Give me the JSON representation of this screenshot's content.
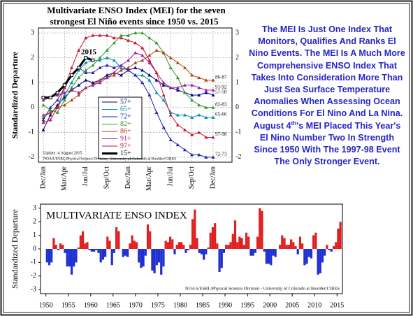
{
  "chart_data": [
    {
      "type": "line",
      "title": "Multivariate ENSO Index (MEI) for the seven",
      "subtitle": "strongest El Niño events since 1950 vs. 2015",
      "y_label": "Standardized Departure",
      "categories": [
        "Dec/Jan",
        null,
        null,
        "Mar/Apr",
        null,
        null,
        "Jun/Jul",
        null,
        null,
        "Sep/Oct",
        null,
        null,
        "Dec/Jan",
        null,
        null,
        "Mar/Apr",
        null,
        null,
        "Jun/Jul",
        null,
        null,
        "Sep/Oct",
        null,
        null,
        "Dec/Jan"
      ],
      "ylim": [
        -2.2,
        3.2
      ],
      "yticks": [
        -2,
        -1,
        0,
        1,
        2,
        3
      ],
      "annotations": [
        "2015",
        "Update: 4 August 2015",
        "NOAA/ESRL/Physical Science Division - University of Colorado at Boulder/CIRES"
      ],
      "series": [
        {
          "name": "57+",
          "end_label": "57-58",
          "color": "#000080",
          "values": [
            -0.9,
            -0.3,
            0.1,
            0.4,
            0.7,
            0.9,
            1.1,
            1.0,
            1.1,
            1.3,
            1.4,
            1.3,
            1.5,
            1.6,
            1.5,
            1.3,
            1.1,
            0.9,
            0.8,
            0.7,
            0.6,
            0.5,
            0.5,
            0.6,
            0.5
          ]
        },
        {
          "name": "65+",
          "end_label": "65-66",
          "color": "#0090b0",
          "values": [
            -0.4,
            -0.2,
            0.0,
            0.5,
            1.0,
            1.5,
            1.8,
            1.9,
            1.9,
            2.0,
            1.9,
            1.6,
            1.5,
            1.3,
            1.3,
            1.1,
            0.6,
            0.3,
            -0.2,
            -0.3,
            -0.3,
            -0.4,
            -0.3,
            -0.4,
            -0.4
          ]
        },
        {
          "name": "72+",
          "end_label": "72-73",
          "color": "#2020b0",
          "values": [
            -0.5,
            0.0,
            0.3,
            0.8,
            1.3,
            1.6,
            1.4,
            1.4,
            1.6,
            1.7,
            1.6,
            1.7,
            1.5,
            1.3,
            1.0,
            0.5,
            -0.2,
            -0.8,
            -1.3,
            -1.5,
            -1.7,
            -1.9,
            -1.9,
            -2.0,
            -2.0
          ]
        },
        {
          "name": "82+",
          "end_label": "82-83",
          "color": "#2a9a2a",
          "values": [
            0.1,
            -0.1,
            -0.2,
            0.3,
            0.8,
            1.2,
            1.5,
            1.7,
            2.0,
            2.3,
            2.6,
            2.9,
            2.9,
            3.0,
            3.0,
            2.8,
            2.6,
            2.2,
            1.6,
            1.2,
            0.6,
            0.3,
            0.1,
            0.0,
            0.0
          ]
        },
        {
          "name": "86+",
          "end_label": "86-87",
          "color": "#b04010",
          "values": [
            -0.3,
            -0.2,
            0.0,
            0.1,
            0.3,
            0.5,
            0.8,
            0.9,
            1.1,
            1.2,
            1.3,
            1.5,
            1.6,
            1.8,
            1.9,
            2.1,
            2.3,
            2.2,
            2.0,
            1.8,
            1.6,
            1.3,
            1.2,
            1.1,
            1.1
          ]
        },
        {
          "name": "91+",
          "end_label": "91-92",
          "color": "#9a209a",
          "values": [
            0.3,
            0.4,
            0.5,
            0.6,
            0.7,
            0.6,
            0.8,
            0.9,
            1.0,
            1.2,
            1.4,
            1.7,
            1.9,
            2.2,
            2.1,
            1.8,
            1.4,
            1.0,
            0.8,
            0.8,
            0.9,
            0.9,
            0.8,
            0.7,
            0.7
          ]
        },
        {
          "name": "97+",
          "end_label": "97-98",
          "color": "#d01030",
          "values": [
            -0.6,
            -0.5,
            0.0,
            0.8,
            1.6,
            2.3,
            2.8,
            2.9,
            2.9,
            2.9,
            2.8,
            2.8,
            2.7,
            2.6,
            2.4,
            1.9,
            1.4,
            0.5,
            -0.3,
            -0.7,
            -0.9,
            -1.1,
            -1.0,
            -1.2,
            -1.2
          ]
        },
        {
          "name": "15+",
          "color": "#000000",
          "values": [
            0.4,
            0.4,
            0.6,
            0.9,
            1.3,
            1.6,
            2.0,
            1.9,
            null,
            null,
            null,
            null,
            null,
            null,
            null,
            null,
            null,
            null,
            null,
            null,
            null,
            null,
            null,
            null,
            null
          ]
        }
      ]
    },
    {
      "type": "bar",
      "title": "MULTIVARIATE ENSO INDEX",
      "y_label": "Standardized Departure",
      "footer": "NOAA/ESRL/Physical Science Division - University of Colorado at Boulder/CIRES",
      "pos_color": "#e02020",
      "neg_color": "#2030d0",
      "xlim": [
        1948.8,
        2016.2
      ],
      "xticks": [
        1950,
        1955,
        1960,
        1965,
        1970,
        1975,
        1980,
        1985,
        1990,
        1995,
        2000,
        2005,
        2010,
        2015
      ],
      "ylim": [
        -3.3,
        3.3
      ],
      "yticks": [
        -3,
        -2,
        -1,
        0,
        1,
        2,
        3
      ],
      "x": [
        1950,
        1950.5,
        1951,
        1951.5,
        1952,
        1952.5,
        1953,
        1953.5,
        1954,
        1954.5,
        1955,
        1955.5,
        1956,
        1956.5,
        1957,
        1957.5,
        1958,
        1958.5,
        1959,
        1959.5,
        1960,
        1960.5,
        1961,
        1961.5,
        1962,
        1962.5,
        1963,
        1963.5,
        1964,
        1964.5,
        1965,
        1965.5,
        1966,
        1966.5,
        1967,
        1967.5,
        1968,
        1968.5,
        1969,
        1969.5,
        1970,
        1970.5,
        1971,
        1971.5,
        1972,
        1972.5,
        1973,
        1973.5,
        1974,
        1974.5,
        1975,
        1975.5,
        1976,
        1976.5,
        1977,
        1977.5,
        1978,
        1978.5,
        1979,
        1979.5,
        1980,
        1980.5,
        1981,
        1981.5,
        1982,
        1982.5,
        1983,
        1983.5,
        1984,
        1984.5,
        1985,
        1985.5,
        1986,
        1986.5,
        1987,
        1987.5,
        1988,
        1988.5,
        1989,
        1989.5,
        1990,
        1990.5,
        1991,
        1991.5,
        1992,
        1992.5,
        1993,
        1993.5,
        1994,
        1994.5,
        1995,
        1995.5,
        1996,
        1996.5,
        1997,
        1997.5,
        1998,
        1998.5,
        1999,
        1999.5,
        2000,
        2000.5,
        2001,
        2001.5,
        2002,
        2002.5,
        2003,
        2003.5,
        2004,
        2004.5,
        2005,
        2005.5,
        2006,
        2006.5,
        2007,
        2007.5,
        2008,
        2008.5,
        2009,
        2009.5,
        2010,
        2010.5,
        2011,
        2011.5,
        2012,
        2012.5,
        2013,
        2013.5,
        2014,
        2014.5,
        2015,
        2015.5
      ],
      "values": [
        -1.0,
        -1.2,
        -1.0,
        0.8,
        0.3,
        -0.1,
        0.4,
        0.3,
        -0.3,
        -1.3,
        -1.3,
        -1.9,
        -1.3,
        -1.0,
        0.1,
        1.0,
        1.3,
        0.4,
        0.5,
        -0.1,
        -0.2,
        -0.2,
        -0.1,
        -0.3,
        -1.0,
        -0.8,
        -0.6,
        0.9,
        0.6,
        -1.2,
        -0.3,
        1.6,
        1.3,
        0.0,
        -0.6,
        -0.5,
        -0.6,
        0.4,
        1.0,
        0.6,
        0.5,
        -1.0,
        -1.4,
        -1.3,
        -0.5,
        1.8,
        1.3,
        -1.6,
        -1.8,
        -1.2,
        -1.0,
        -1.9,
        -1.3,
        0.6,
        0.5,
        0.9,
        0.7,
        -0.4,
        0.3,
        0.5,
        0.5,
        0.3,
        -0.3,
        -0.1,
        0.3,
        2.2,
        2.9,
        0.8,
        -0.3,
        -0.4,
        -0.8,
        -0.4,
        0.1,
        1.2,
        1.6,
        1.9,
        0.4,
        -1.7,
        -1.4,
        -0.3,
        0.3,
        0.3,
        0.5,
        1.1,
        2.1,
        0.5,
        0.9,
        0.8,
        0.3,
        1.2,
        0.9,
        -0.5,
        -0.5,
        -0.3,
        0.9,
        3.0,
        2.8,
        -0.2,
        -1.1,
        -1.1,
        -1.2,
        -0.5,
        -0.6,
        0.0,
        0.3,
        1.0,
        0.8,
        0.3,
        0.3,
        0.7,
        0.5,
        0.2,
        -0.4,
        0.9,
        0.4,
        -1.2,
        -1.1,
        -0.6,
        -0.7,
        1.0,
        1.2,
        -1.9,
        -1.8,
        -1.0,
        -0.5,
        0.3,
        -0.1,
        -0.2,
        0.2,
        0.5,
        1.5,
        2.0
      ]
    }
  ],
  "text": {
    "before": "The MEI Is Just One Index That Monitors, Qualifies And Ranks El Nino Events.  The MEI Is A Much More Comprehensive ENSO Index That Takes Into Consideration More Than Just Sea Surface Temperature Anomalies When Assessing Ocean Conditions For El Nino And La Nina. August 4",
    "sup": "th",
    "after": "'s MEI Placed This Year's El Nino Number Two In Strength Since 1950 With The 1997-98 Event The Only Stronger Event."
  }
}
